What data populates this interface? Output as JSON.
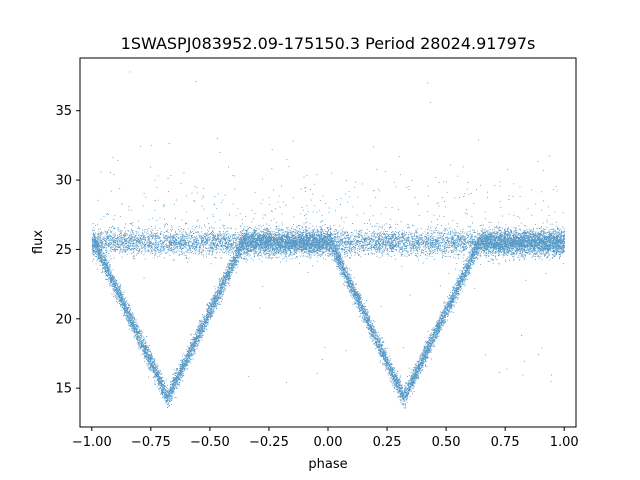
{
  "chart_data": {
    "type": "scatter",
    "title": "1SWASPJ083952.09-175150.3 Period 28024.91797s",
    "xlabel": "phase",
    "ylabel": "flux",
    "xlim": [
      -1.05,
      1.05
    ],
    "ylim": [
      12.2,
      38.8
    ],
    "xticks": [
      -1.0,
      -0.75,
      -0.5,
      -0.25,
      0.0,
      0.25,
      0.5,
      0.75,
      1.0
    ],
    "xtick_labels": [
      "−1.00",
      "−0.75",
      "−0.50",
      "−0.25",
      "0.00",
      "0.25",
      "0.50",
      "0.75",
      "1.00"
    ],
    "yticks": [
      15,
      20,
      25,
      30,
      35
    ],
    "ytick_labels": [
      "15",
      "20",
      "25",
      "30",
      "35"
    ],
    "grid": false,
    "marker_color": "#1f77b4",
    "baseline_flux": 25.5,
    "baseline_scatter": 0.45,
    "eclipses": [
      {
        "center_phase": -0.68,
        "min_flux": 14.3,
        "ingress_start_phase": -0.99,
        "egress_end_phase": -0.36
      },
      {
        "center_phase": 0.32,
        "min_flux": 14.3,
        "ingress_start_phase": 0.01,
        "egress_end_phase": 0.64
      }
    ],
    "approx_points": 20000
  }
}
